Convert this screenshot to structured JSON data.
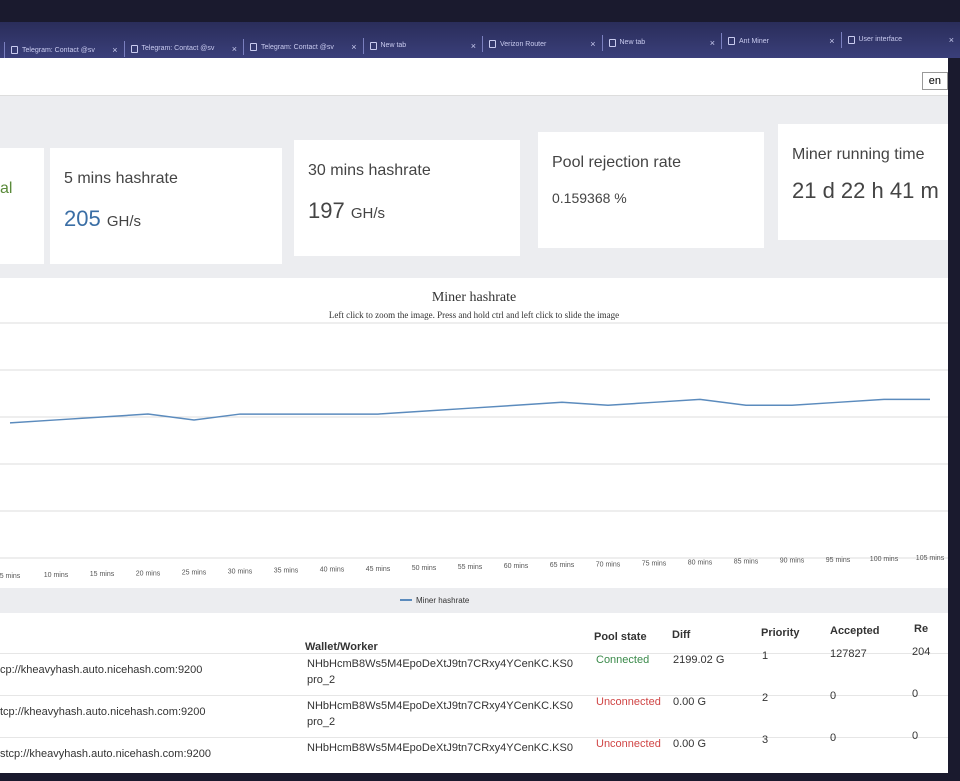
{
  "browser": {
    "tabs": [
      {
        "label": "Telegram: Contact @sv"
      },
      {
        "label": "Telegram: Contact @sv"
      },
      {
        "label": "Telegram: Contact @sv"
      },
      {
        "label": "New tab"
      },
      {
        "label": "Verizon Router"
      },
      {
        "label": "New tab"
      },
      {
        "label": "Ant Miner"
      },
      {
        "label": "User interface"
      }
    ]
  },
  "header": {
    "lang": "en"
  },
  "cards": [
    {
      "title": "al",
      "value": "",
      "unit": ""
    },
    {
      "title": "5 mins hashrate",
      "value": "205",
      "unit": "GH/s"
    },
    {
      "title": "30 mins hashrate",
      "value": "197",
      "unit": "GH/s"
    },
    {
      "title": "Pool rejection rate",
      "value": "0.159368 %",
      "unit": ""
    },
    {
      "title": "Miner running time",
      "value": "21 d 22 h 41 m",
      "unit": ""
    }
  ],
  "chart_data": {
    "type": "line",
    "title": "Miner hashrate",
    "subtitle": "Left click to zoom the image. Press and hold ctrl and left click to slide the image",
    "x": [
      "5 mins",
      "10 mins",
      "15 mins",
      "20 mins",
      "25 mins",
      "30 mins",
      "35 mins",
      "40 mins",
      "45 mins",
      "50 mins",
      "55 mins",
      "60 mins",
      "65 mins",
      "70 mins",
      "75 mins",
      "80 mins",
      "85 mins",
      "90 mins",
      "95 mins",
      "100 mins",
      "105 mins"
    ],
    "series": [
      {
        "name": "Miner hashrate",
        "values": [
          196,
          197,
          198,
          199,
          197,
          199,
          199,
          199,
          199,
          200,
          201,
          202,
          203,
          202,
          203,
          204,
          202,
          202,
          203,
          204,
          204
        ]
      }
    ],
    "grid": true,
    "legend": "bottom",
    "color": "#5b8bbd"
  },
  "pools": {
    "headers": {
      "wallet": "Wallet/Worker",
      "state": "Pool state",
      "diff": "Diff",
      "priority": "Priority",
      "accepted": "Accepted",
      "rejected": "Re"
    },
    "rows": [
      {
        "url": "cp://kheavyhash.auto.nicehash.com:9200",
        "wallet": "NHbHcmB8Ws5M4EpoDeXtJ9tn7CRxy4YCenKC.KS0",
        "worker": "pro_2",
        "state": "Connected",
        "diff": "2199.02 G",
        "priority": "1",
        "accepted": "127827",
        "rejected": "204"
      },
      {
        "url": "tcp://kheavyhash.auto.nicehash.com:9200",
        "wallet": "NHbHcmB8Ws5M4EpoDeXtJ9tn7CRxy4YCenKC.KS0",
        "worker": "pro_2",
        "state": "Unconnected",
        "diff": "0.00 G",
        "priority": "2",
        "accepted": "0",
        "rejected": "0"
      },
      {
        "url": "stcp://kheavyhash.auto.nicehash.com:9200",
        "wallet": "NHbHcmB8Ws5M4EpoDeXtJ9tn7CRxy4YCenKC.KS0",
        "worker": "",
        "state": "Unconnected",
        "diff": "0.00 G",
        "priority": "3",
        "accepted": "0",
        "rejected": "0"
      }
    ]
  }
}
